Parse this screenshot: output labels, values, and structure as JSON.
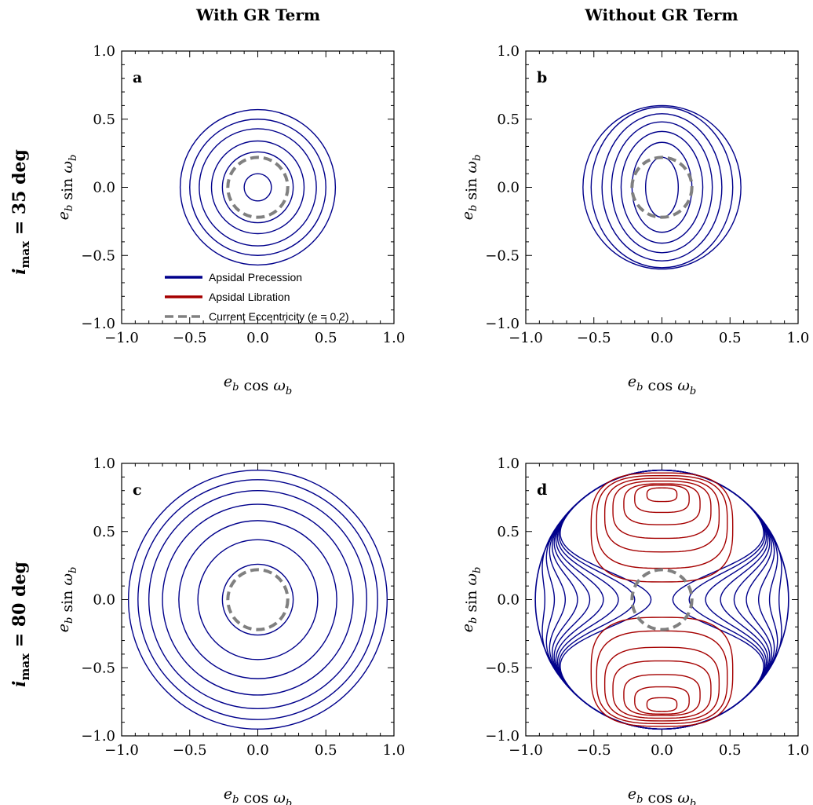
{
  "figure": {
    "col_titles": [
      "With GR Term",
      "Without GR Term"
    ],
    "row_titles": [
      "i_max = 35 deg",
      "i_max = 80 deg"
    ],
    "row_title_parts": [
      {
        "symbol": "i",
        "sub": "max",
        "rest": " = 35 deg"
      },
      {
        "symbol": "i",
        "sub": "max",
        "rest": " = 80 deg"
      }
    ]
  },
  "colors": {
    "precession": "#00008b",
    "libration": "#a50000",
    "current": "#808080"
  },
  "legend": {
    "items": [
      {
        "label": "Apsidal Precession",
        "color": "#00008b",
        "style": "solid"
      },
      {
        "label": "Apsidal Libration",
        "color": "#a50000",
        "style": "solid"
      },
      {
        "label": "Current Eccentricity (e = 0.2)",
        "color": "#808080",
        "style": "dashed"
      }
    ]
  },
  "chart_data": [
    {
      "type": "line",
      "panel": "a",
      "xlabel": "e_b cos ω_b",
      "ylabel": "e_b sin ω_b",
      "xlim": [
        -1.0,
        1.0
      ],
      "ylim": [
        -1.0,
        1.0
      ],
      "xticks": [
        "−1.0",
        "−0.5",
        "0.0",
        "0.5",
        "1.0"
      ],
      "yticks": [
        "−1.0",
        "−0.5",
        "0.0",
        "0.5",
        "1.0"
      ],
      "current_radius": 0.22,
      "precession": [
        {
          "rx": 0.1,
          "ry": 0.1
        },
        {
          "rx": 0.26,
          "ry": 0.26
        },
        {
          "rx": 0.34,
          "ry": 0.34
        },
        {
          "rx": 0.43,
          "ry": 0.43
        },
        {
          "rx": 0.5,
          "ry": 0.5
        },
        {
          "rx": 0.57,
          "ry": 0.57
        }
      ],
      "libration": []
    },
    {
      "type": "line",
      "panel": "b",
      "xlabel": "e_b cos ω_b",
      "ylabel": "e_b sin ω_b",
      "xlim": [
        -1.0,
        1.0
      ],
      "ylim": [
        -1.0,
        1.0
      ],
      "xticks": [
        "−1.0",
        "−0.5",
        "0.0",
        "0.5",
        "1.0"
      ],
      "yticks": [
        "−1.0",
        "−0.5",
        "0.0",
        "0.5",
        "1.0"
      ],
      "current_radius": 0.22,
      "precession": [
        {
          "rx": 0.12,
          "ry": 0.22
        },
        {
          "rx": 0.22,
          "ry": 0.33
        },
        {
          "rx": 0.3,
          "ry": 0.41
        },
        {
          "rx": 0.37,
          "ry": 0.48
        },
        {
          "rx": 0.44,
          "ry": 0.54
        },
        {
          "rx": 0.52,
          "ry": 0.59
        },
        {
          "rx": 0.58,
          "ry": 0.6
        }
      ],
      "libration": []
    },
    {
      "type": "line",
      "panel": "c",
      "xlabel": "e_b cos ω_b",
      "ylabel": "e_b sin ω_b",
      "xlim": [
        -1.0,
        1.0
      ],
      "ylim": [
        -1.0,
        1.0
      ],
      "xticks": [
        "−1.0",
        "−0.5",
        "0.0",
        "0.5",
        "1.0"
      ],
      "yticks": [
        "−1.0",
        "−0.5",
        "0.0",
        "0.5",
        "1.0"
      ],
      "current_radius": 0.22,
      "precession": [
        {
          "rx": 0.26,
          "ry": 0.26
        },
        {
          "rx": 0.44,
          "ry": 0.44
        },
        {
          "rx": 0.58,
          "ry": 0.58
        },
        {
          "rx": 0.7,
          "ry": 0.7
        },
        {
          "rx": 0.8,
          "ry": 0.8
        },
        {
          "rx": 0.88,
          "ry": 0.88
        },
        {
          "rx": 0.95,
          "ry": 0.95
        }
      ],
      "libration": []
    },
    {
      "type": "line",
      "panel": "d",
      "xlabel": "e_b cos ω_b",
      "ylabel": "e_b sin ω_b",
      "xlim": [
        -1.0,
        1.0
      ],
      "ylim": [
        -1.0,
        1.0
      ],
      "xticks": [
        "−1.0",
        "−0.5",
        "0.0",
        "0.5",
        "1.0"
      ],
      "yticks": [
        "−1.0",
        "−0.5",
        "0.0",
        "0.5",
        "1.0"
      ],
      "current_radius": 0.22,
      "precession_waists": [
        0.08,
        0.2,
        0.32,
        0.43,
        0.53,
        0.62,
        0.71,
        0.79,
        0.86
      ],
      "precession_outer_x": 0.93,
      "precession_outer_y": 0.95,
      "libration": [
        {
          "cy": 0.77,
          "rx": 0.11,
          "ry": 0.05
        },
        {
          "cy": 0.74,
          "rx": 0.2,
          "ry": 0.1
        },
        {
          "cy": 0.7,
          "rx": 0.28,
          "ry": 0.15
        },
        {
          "cy": 0.66,
          "rx": 0.36,
          "ry": 0.21
        },
        {
          "cy": 0.62,
          "rx": 0.42,
          "ry": 0.27
        },
        {
          "cy": 0.57,
          "rx": 0.48,
          "ry": 0.34
        },
        {
          "cy": 0.53,
          "rx": 0.52,
          "ry": 0.4
        }
      ]
    }
  ]
}
